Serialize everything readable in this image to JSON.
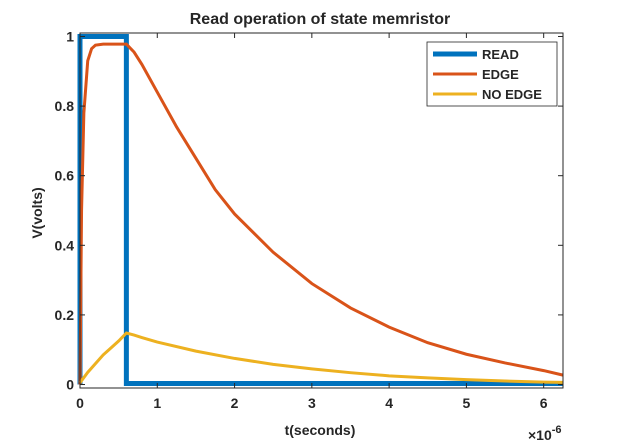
{
  "chart_data": {
    "type": "line",
    "title": "Read operation of state memristor",
    "xlabel": "t(seconds)",
    "ylabel": "V(volts)",
    "x_multiplier_base": "×10",
    "x_multiplier_exp": "-6",
    "xlim": [
      0,
      6.25
    ],
    "ylim": [
      -0.01,
      1.01
    ],
    "x_ticks": [
      0,
      1,
      2,
      3,
      4,
      5,
      6
    ],
    "y_ticks": [
      0,
      0.2,
      0.4,
      0.6,
      0.8,
      1
    ],
    "x_tick_labels": [
      "0",
      "1",
      "2",
      "3",
      "4",
      "5",
      "6"
    ],
    "y_tick_labels": [
      "0",
      "0.2",
      "0.4",
      "0.6",
      "0.8",
      "1"
    ],
    "grid": false,
    "legend_position": "top-right",
    "series": [
      {
        "name": "READ",
        "color": "#0072BD",
        "x": [
          0,
          0,
          0.6,
          0.6,
          6.25
        ],
        "y": [
          0,
          1,
          1,
          0.003,
          0.003
        ]
      },
      {
        "name": "EDGE",
        "color": "#D95319",
        "x": [
          0,
          0.02,
          0.05,
          0.1,
          0.15,
          0.2,
          0.3,
          0.4,
          0.5,
          0.6,
          0.7,
          0.8,
          1.0,
          1.25,
          1.5,
          1.75,
          2.0,
          2.5,
          3.0,
          3.5,
          4.0,
          4.5,
          5.0,
          5.5,
          6.0,
          6.25
        ],
        "y": [
          0,
          0.5,
          0.78,
          0.93,
          0.965,
          0.975,
          0.978,
          0.978,
          0.978,
          0.978,
          0.955,
          0.92,
          0.84,
          0.74,
          0.65,
          0.56,
          0.49,
          0.38,
          0.29,
          0.22,
          0.165,
          0.12,
          0.087,
          0.062,
          0.04,
          0.027
        ]
      },
      {
        "name": "NO EDGE",
        "color": "#EDB120",
        "x": [
          0,
          0.1,
          0.2,
          0.3,
          0.4,
          0.5,
          0.6,
          0.7,
          0.8,
          1.0,
          1.5,
          2.0,
          2.5,
          3.0,
          3.5,
          4.0,
          4.5,
          5.0,
          5.5,
          6.0,
          6.25
        ],
        "y": [
          0.005,
          0.035,
          0.06,
          0.085,
          0.105,
          0.125,
          0.148,
          0.142,
          0.135,
          0.122,
          0.096,
          0.075,
          0.058,
          0.045,
          0.034,
          0.025,
          0.019,
          0.014,
          0.01,
          0.007,
          0.006
        ]
      }
    ]
  }
}
